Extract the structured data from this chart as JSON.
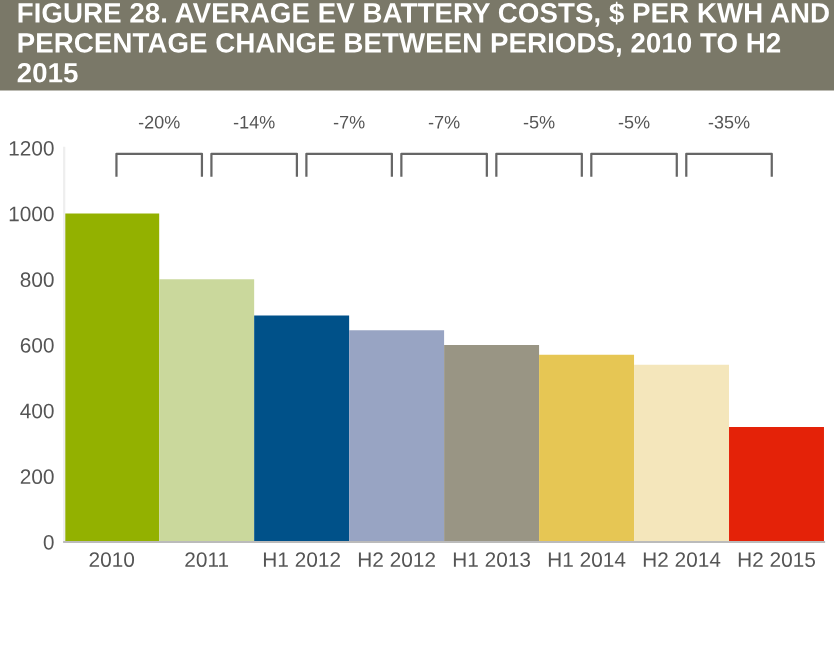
{
  "chart_data": {
    "type": "bar",
    "title": "FIGURE 28. AVERAGE EV BATTERY COSTS, $ PER KWH AND PERCENTAGE CHANGE BETWEEN PERIODS, 2010 TO H2 2015",
    "categories": [
      "2010",
      "2011",
      "H1 2012",
      "H2 2012",
      "H1 2013",
      "H1 2014",
      "H2 2014",
      "H2 2015"
    ],
    "values": [
      1000,
      800,
      690,
      645,
      600,
      570,
      540,
      350
    ],
    "colors": [
      "#93b100",
      "#cad89c",
      "#005189",
      "#98a4c3",
      "#999584",
      "#e6c654",
      "#f4e6bb",
      "#e42208"
    ],
    "annotations": [
      "-20%",
      "-14%",
      "-7%",
      "-7%",
      "-5%",
      "-5%",
      "-35%"
    ],
    "ylim": [
      0,
      1200
    ],
    "yticks": [
      0,
      200,
      400,
      600,
      800,
      1000,
      1200
    ],
    "grid": false,
    "legend": false
  }
}
